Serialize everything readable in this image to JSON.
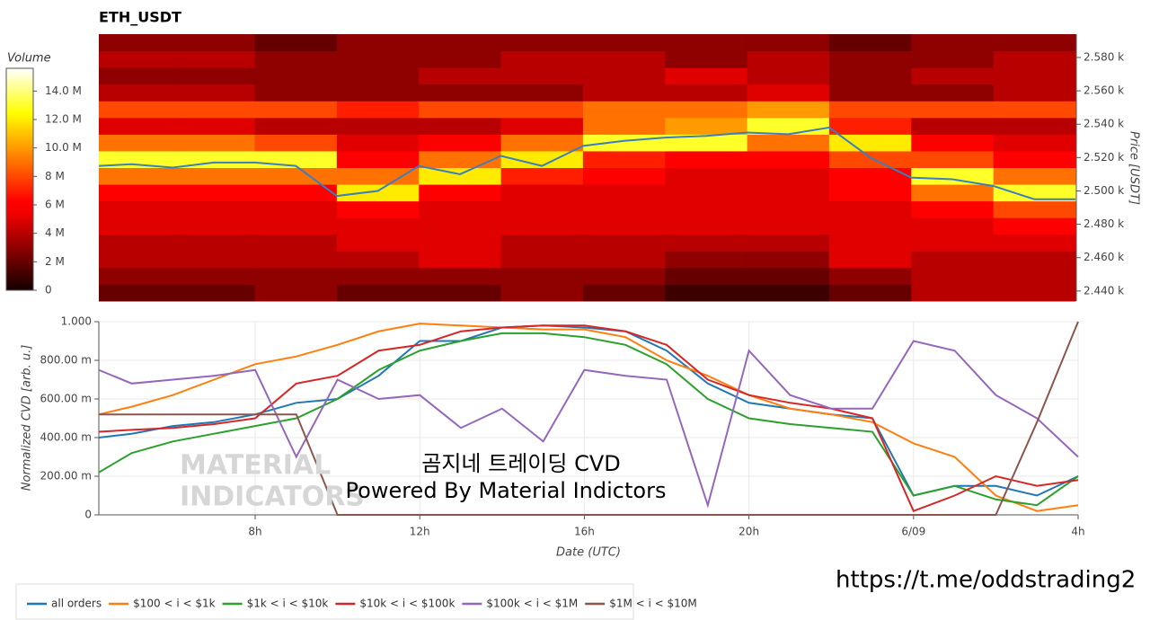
{
  "chart_data": [
    {
      "type": "heatmap",
      "title": "ETH_USDT",
      "ylabel": "Price [USDT]",
      "colormap": "hot",
      "xlim": [
        4.2,
        28
      ],
      "ylim": [
        2434,
        2594
      ],
      "xbins": [
        4.2,
        6,
        8,
        10,
        12,
        14,
        16,
        18,
        20,
        22,
        24,
        26,
        28
      ],
      "ybins": [
        2434,
        2444,
        2454,
        2464,
        2474,
        2484,
        2494,
        2504,
        2514,
        2524,
        2534,
        2544,
        2554,
        2564,
        2574,
        2584,
        2594
      ],
      "z": [
        [
          2,
          2,
          3,
          2,
          2,
          3,
          2,
          1,
          1,
          2,
          4,
          4
        ],
        [
          3,
          3,
          3,
          3,
          3,
          3,
          3,
          2,
          2,
          3,
          4,
          4
        ],
        [
          4,
          4,
          4,
          4,
          5,
          4,
          4,
          3,
          3,
          5,
          4,
          4
        ],
        [
          4,
          4,
          4,
          5,
          5,
          4,
          4,
          4,
          4,
          5,
          5,
          5
        ],
        [
          5,
          5,
          5,
          5,
          5,
          5,
          5,
          5,
          5,
          5,
          5,
          6
        ],
        [
          5,
          5,
          5,
          6,
          5,
          5,
          5,
          5,
          5,
          5,
          6,
          8
        ],
        [
          6,
          6,
          6,
          12,
          6,
          5,
          5,
          5,
          5,
          6,
          9,
          13
        ],
        [
          9,
          9,
          9,
          9,
          12,
          7,
          6,
          5,
          5,
          6,
          13,
          9
        ],
        [
          13,
          13,
          13,
          6,
          9,
          12,
          7,
          6,
          6,
          8,
          8,
          6
        ],
        [
          9,
          9,
          8,
          5,
          6,
          9,
          13,
          13,
          9,
          12,
          6,
          5
        ],
        [
          5,
          5,
          4,
          4,
          4,
          5,
          9,
          10,
          13,
          7,
          4,
          4
        ],
        [
          8,
          8,
          8,
          7,
          8,
          8,
          9,
          9,
          10,
          8,
          8,
          8
        ],
        [
          4,
          4,
          3,
          3,
          3,
          3,
          4,
          4,
          5,
          3,
          3,
          4
        ],
        [
          3,
          3,
          3,
          3,
          4,
          4,
          4,
          5,
          4,
          3,
          4,
          4
        ],
        [
          4,
          4,
          3,
          3,
          3,
          4,
          4,
          3,
          4,
          3,
          3,
          4
        ],
        [
          3,
          3,
          2,
          3,
          3,
          3,
          3,
          3,
          3,
          2,
          3,
          3
        ]
      ],
      "yticks": [
        {
          "value": 2440,
          "label": "2.440 k"
        },
        {
          "value": 2460,
          "label": "2.460 k"
        },
        {
          "value": 2480,
          "label": "2.480 k"
        },
        {
          "value": 2500,
          "label": "2.500 k"
        },
        {
          "value": 2520,
          "label": "2.520 k"
        },
        {
          "value": 2540,
          "label": "2.540 k"
        },
        {
          "value": 2560,
          "label": "2.560 k"
        },
        {
          "value": 2580,
          "label": "2.580 k"
        }
      ],
      "colorbar": {
        "label": "Volume",
        "lim": [
          0,
          15.6
        ],
        "ticks": [
          0,
          {
            "value": 2,
            "label": "2 M"
          },
          {
            "value": 4,
            "label": "4 M"
          },
          {
            "value": 6,
            "label": "6 M"
          },
          {
            "value": 8,
            "label": "8 M"
          },
          {
            "value": 10,
            "label": "10.0 M"
          },
          {
            "value": 12,
            "label": "12.0 M"
          },
          {
            "value": 14,
            "label": "14.0 M"
          }
        ]
      },
      "series": [
        {
          "color": "#3a7fbf",
          "x": [
            4.2,
            5,
            6,
            7,
            8,
            9,
            10,
            11,
            12,
            13,
            14,
            15,
            16,
            17,
            18,
            19,
            20,
            21,
            22,
            23,
            24,
            25,
            26,
            27,
            28
          ],
          "values": [
            2515,
            2516,
            2514,
            2517,
            2517,
            2515,
            2497,
            2500,
            2515,
            2510,
            2521,
            2515,
            2527,
            2530,
            2532,
            2533,
            2535,
            2534,
            2538,
            2520,
            2508,
            2507,
            2503,
            2495,
            2495
          ]
        }
      ]
    },
    {
      "type": "line",
      "xlabel": "Date (UTC)",
      "ylabel": "Normalized CVD [arb. u.]",
      "grid": true,
      "xlim": [
        4.2,
        28
      ],
      "ylim": [
        0,
        1
      ],
      "xticks": [
        {
          "value": 8,
          "label": "8h"
        },
        {
          "value": 12,
          "label": "12h"
        },
        {
          "value": 16,
          "label": "16h"
        },
        {
          "value": 20,
          "label": "20h"
        },
        {
          "value": 24,
          "label": "6/09"
        },
        {
          "value": 28,
          "label": "4h"
        }
      ],
      "yticks": [
        0,
        {
          "value": 0.2,
          "label": "200.00 m"
        },
        {
          "value": 0.4,
          "label": "400.00 m"
        },
        {
          "value": 0.6,
          "label": "600.00 m"
        },
        {
          "value": 0.8,
          "label": "800.00 m"
        },
        {
          "value": 1,
          "label": "1.000"
        }
      ],
      "x": [
        4.2,
        5,
        6,
        7,
        8,
        9,
        10,
        11,
        12,
        13,
        14,
        15,
        16,
        17,
        18,
        19,
        20,
        21,
        22,
        23,
        24,
        25,
        26,
        27,
        28
      ],
      "series": [
        {
          "name": "all orders",
          "color": "#1f77b4",
          "values": [
            0.4,
            0.42,
            0.46,
            0.48,
            0.52,
            0.58,
            0.6,
            0.72,
            0.9,
            0.9,
            0.97,
            0.98,
            0.97,
            0.95,
            0.85,
            0.68,
            0.58,
            0.55,
            0.52,
            0.5,
            0.1,
            0.15,
            0.15,
            0.1,
            0.2
          ]
        },
        {
          "name": "$100 < i < $1k",
          "color": "#ff7f0e",
          "values": [
            0.52,
            0.56,
            0.62,
            0.7,
            0.78,
            0.82,
            0.88,
            0.95,
            0.99,
            0.98,
            0.97,
            0.96,
            0.96,
            0.92,
            0.8,
            0.72,
            0.62,
            0.55,
            0.52,
            0.48,
            0.37,
            0.3,
            0.1,
            0.02,
            0.05
          ]
        },
        {
          "name": "$1k < i < $10k",
          "color": "#2ca02c",
          "values": [
            0.22,
            0.32,
            0.38,
            0.42,
            0.46,
            0.5,
            0.6,
            0.75,
            0.85,
            0.9,
            0.94,
            0.94,
            0.92,
            0.88,
            0.78,
            0.6,
            0.5,
            0.47,
            0.45,
            0.43,
            0.1,
            0.15,
            0.08,
            0.05,
            0.2
          ]
        },
        {
          "name": "$10k < i < $100k",
          "color": "#d62728",
          "values": [
            0.43,
            0.44,
            0.45,
            0.47,
            0.5,
            0.68,
            0.72,
            0.85,
            0.88,
            0.95,
            0.97,
            0.98,
            0.98,
            0.95,
            0.88,
            0.7,
            0.62,
            0.58,
            0.55,
            0.5,
            0.02,
            0.1,
            0.2,
            0.15,
            0.18
          ]
        },
        {
          "name": "$100k < i < $1M",
          "color": "#9467bd",
          "values": [
            0.75,
            0.68,
            0.7,
            0.72,
            0.75,
            0.3,
            0.7,
            0.6,
            0.62,
            0.45,
            0.55,
            0.38,
            0.75,
            0.72,
            0.7,
            0.05,
            0.85,
            0.62,
            0.55,
            0.55,
            0.9,
            0.85,
            0.62,
            0.5,
            0.3
          ]
        },
        {
          "name": "$1M < i < $10M",
          "color": "#8c564b",
          "values": [
            0.52,
            0.52,
            0.52,
            0.52,
            0.52,
            0.52,
            0,
            0,
            0,
            0,
            0,
            0,
            0,
            0,
            0,
            0,
            0,
            0,
            0,
            0,
            0,
            0,
            0,
            0.48,
            1
          ]
        }
      ],
      "watermark": [
        "MATERIAL",
        "INDICATORS"
      ],
      "annotations": [
        "곰지네 트레이딩 CVD",
        "Powered By Material Indictors"
      ]
    }
  ],
  "footer": {
    "link": "https://t.me/oddstrading2"
  }
}
